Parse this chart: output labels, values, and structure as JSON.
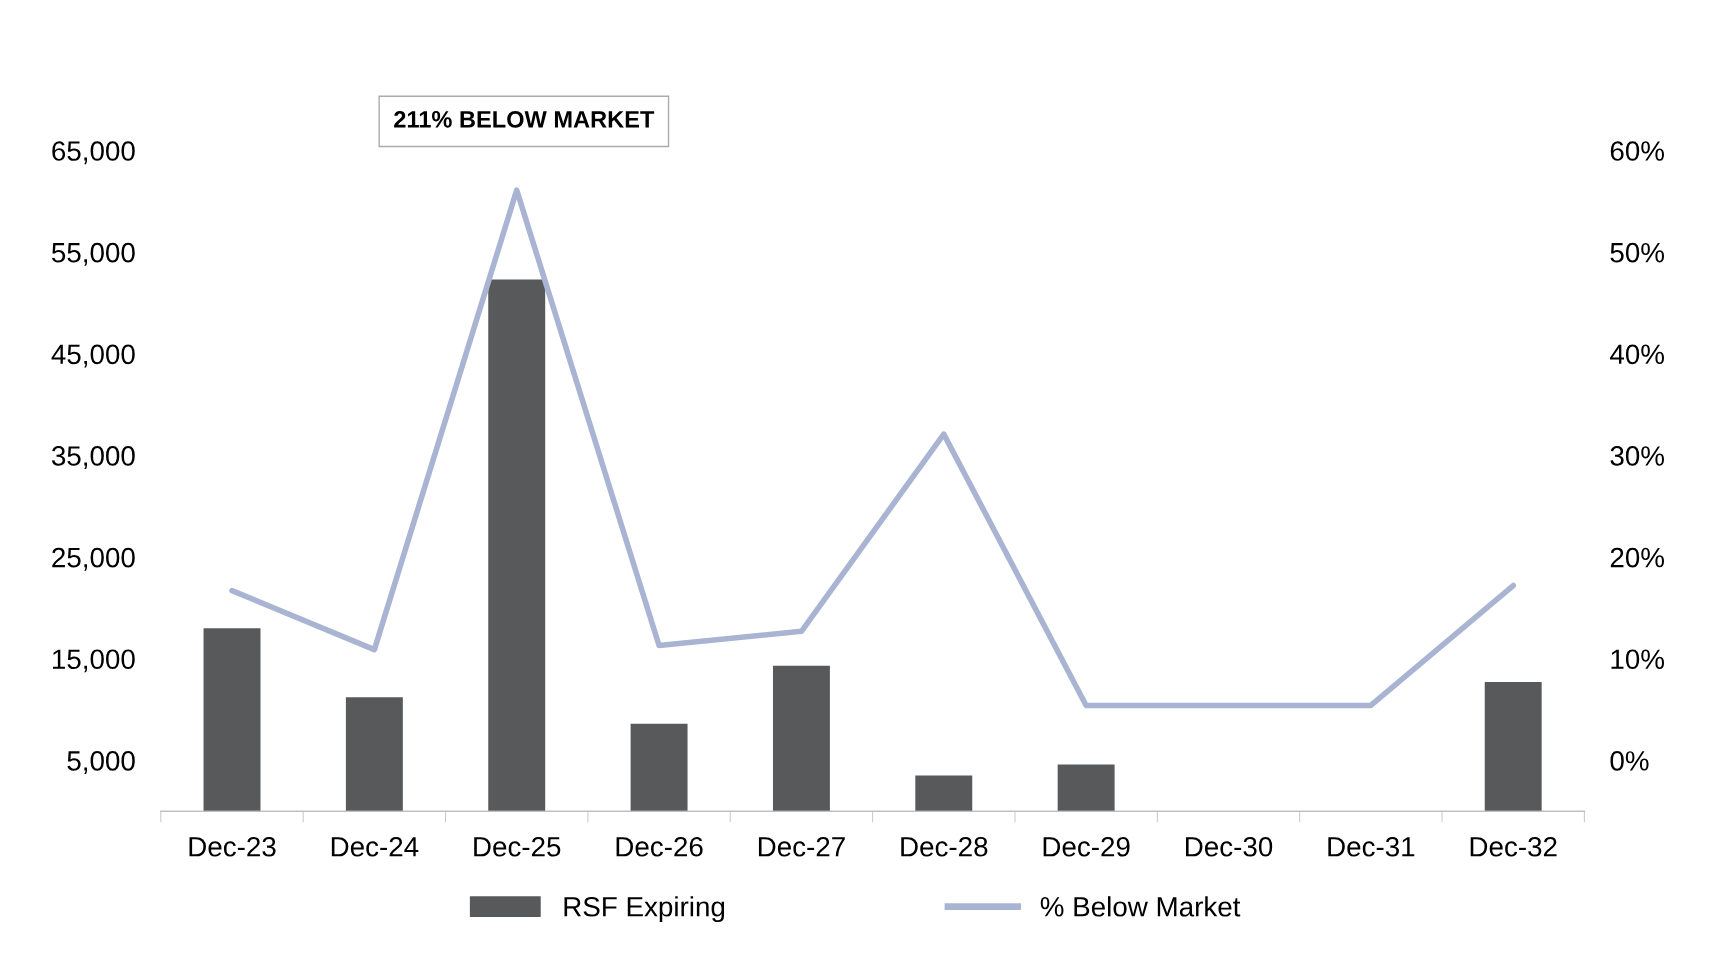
{
  "chart_data": {
    "type": "bar",
    "categories": [
      "Dec-23",
      "Dec-24",
      "Dec-25",
      "Dec-26",
      "Dec-27",
      "Dec-28",
      "Dec-29",
      "Dec-30",
      "Dec-31",
      "Dec-32"
    ],
    "series": [
      {
        "name": "RSF Expiring",
        "color": "#58595b",
        "values": [
          18000,
          11200,
          52300,
          8600,
          14300,
          3500,
          4600,
          null,
          null,
          12700
        ]
      },
      {
        "name": "% Below Market",
        "type": "line",
        "axis": "y2",
        "color": "#a9b4d2",
        "values": [
          16.7,
          10.9,
          56.1,
          11.3,
          12.7,
          32.1,
          5.4,
          5.4,
          5.4,
          17.2
        ]
      }
    ],
    "ylim": [
      0,
      70000
    ],
    "yticks": [
      {
        "value": 5000,
        "label": "5,000"
      },
      {
        "value": 15000,
        "label": "15,000"
      },
      {
        "value": 25000,
        "label": "25,000"
      },
      {
        "value": 35000,
        "label": "35,000"
      },
      {
        "value": 45000,
        "label": "45,000"
      },
      {
        "value": 55000,
        "label": "55,000"
      },
      {
        "value": 65000,
        "label": "65,000"
      }
    ],
    "y2lim": [
      -5,
      65
    ],
    "y2ticks": [
      {
        "value": 0,
        "label": "0%"
      },
      {
        "value": 10,
        "label": "10%"
      },
      {
        "value": 20,
        "label": "20%"
      },
      {
        "value": 30,
        "label": "30%"
      },
      {
        "value": 40,
        "label": "40%"
      },
      {
        "value": 50,
        "label": "50%"
      },
      {
        "value": 60,
        "label": "60%"
      }
    ],
    "annotations": [
      "211% BELOW MARKET"
    ],
    "legend": "bottom",
    "grid": false,
    "marker": "none",
    "line_style": "solid"
  }
}
